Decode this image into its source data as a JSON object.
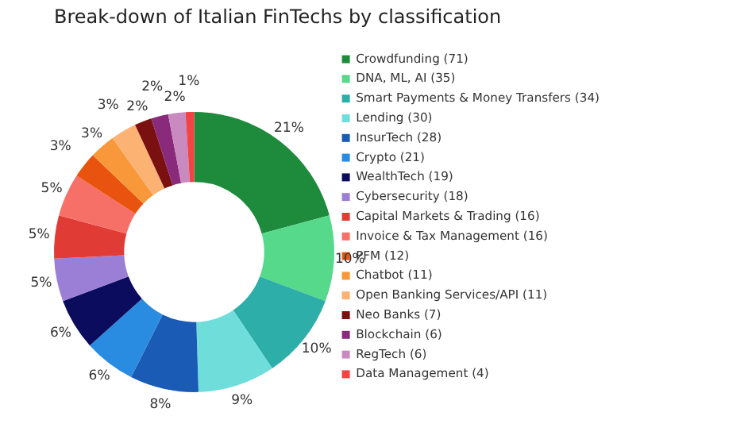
{
  "chart_data": {
    "type": "donut",
    "title": "Break-down of Italian FinTechs by classification",
    "categories": [
      "Crowdfunding (71)",
      "DNA, ML, AI (35)",
      "Smart Payments & Money Transfers (34)",
      "Lending (30)",
      "InsurTech (28)",
      "Crypto (21)",
      "WealthTech (19)",
      "Cybersecurity (18)",
      "Capital Markets & Trading (16)",
      "Invoice & Tax Management (16)",
      "PFM (12)",
      "Chatbot (11)",
      "Open Banking Services/API (11)",
      "Neo Banks (7)",
      "Blockchain (6)",
      "RegTech (6)",
      "Data Management (4)"
    ],
    "values": [
      21,
      10,
      10,
      9,
      8,
      6,
      6,
      5,
      5,
      5,
      3,
      3,
      3,
      2,
      2,
      2,
      1
    ],
    "value_labels": [
      "21%",
      "10%",
      "10%",
      "9%",
      "8%",
      "6%",
      "6%",
      "5%",
      "5%",
      "5%",
      "3%",
      "3%",
      "3%",
      "2%",
      "2%",
      "2%",
      "1%"
    ],
    "colors": [
      "#1e8b3c",
      "#56d98a",
      "#2eaea8",
      "#6fdedb",
      "#1a5cb5",
      "#2a8ce0",
      "#0b0c5e",
      "#9b7fd6",
      "#e03c35",
      "#f77068",
      "#e8540f",
      "#f9983a",
      "#fbb273",
      "#7a1010",
      "#8a2a7a",
      "#c98ac0",
      "#f24444"
    ],
    "legend": "right"
  }
}
